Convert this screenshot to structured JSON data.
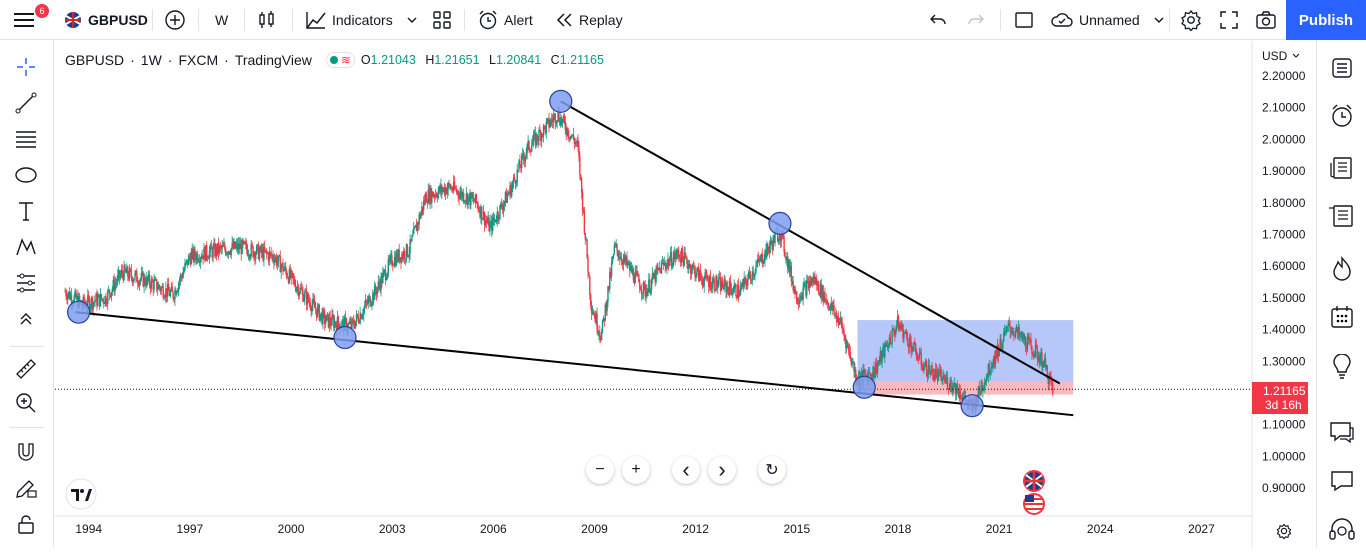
{
  "header": {
    "notification_count": "6",
    "symbol": "GBPUSD",
    "interval": "W",
    "indicators_label": "Indicators",
    "alert_label": "Alert",
    "replay_label": "Replay",
    "layout_name": "Unnamed",
    "publish_label": "Publish"
  },
  "legend": {
    "symbol": "GBPUSD",
    "interval": "1W",
    "exchange": "FXCM",
    "source": "TradingView",
    "open_label": "O",
    "open": "1.21043",
    "high_label": "H",
    "high": "1.21651",
    "low_label": "L",
    "low": "1.20841",
    "close_label": "C",
    "close": "1.21165"
  },
  "price_scale": {
    "currency": "USD",
    "ticks": [
      "2.20000",
      "2.10000",
      "2.00000",
      "1.90000",
      "1.80000",
      "1.70000",
      "1.60000",
      "1.50000",
      "1.40000",
      "1.30000",
      "1.10000",
      "1.00000",
      "0.90000"
    ],
    "last_price": "1.21165",
    "countdown": "3d 16h"
  },
  "time_scale": {
    "ticks": [
      "1994",
      "1997",
      "2000",
      "2003",
      "2006",
      "2009",
      "2012",
      "2015",
      "2018",
      "2021",
      "2024",
      "2027"
    ]
  },
  "chart_controls": {
    "zoom_out": "−",
    "zoom_in": "+",
    "scroll_left": "‹",
    "scroll_right": "›",
    "reset": "↻"
  },
  "colors": {
    "up": "#089981",
    "down": "#f23645",
    "accent": "#2962ff",
    "box_blue": "#9db5f7",
    "box_red": "#f7a8ae",
    "marker": "#7e9ef0"
  },
  "chart_data": {
    "type": "candlestick",
    "symbol": "GBPUSD",
    "interval": "1W",
    "x_range": [
      1993,
      2028.5
    ],
    "y_range": [
      0.84,
      2.24
    ],
    "last_close": 1.21165,
    "price_path": [
      [
        1993.3,
        1.52
      ],
      [
        1993.8,
        1.48
      ],
      [
        1994.5,
        1.5
      ],
      [
        1995.0,
        1.58
      ],
      [
        1995.8,
        1.55
      ],
      [
        1996.5,
        1.51
      ],
      [
        1997.0,
        1.63
      ],
      [
        1997.8,
        1.65
      ],
      [
        1998.5,
        1.66
      ],
      [
        1999.5,
        1.63
      ],
      [
        2000.3,
        1.52
      ],
      [
        2001.0,
        1.43
      ],
      [
        2001.8,
        1.41
      ],
      [
        2002.5,
        1.52
      ],
      [
        2003.0,
        1.62
      ],
      [
        2003.5,
        1.65
      ],
      [
        2004.0,
        1.82
      ],
      [
        2004.7,
        1.85
      ],
      [
        2005.5,
        1.8
      ],
      [
        2005.9,
        1.72
      ],
      [
        2006.5,
        1.84
      ],
      [
        2007.0,
        1.97
      ],
      [
        2007.9,
        2.08
      ],
      [
        2008.5,
        1.98
      ],
      [
        2008.9,
        1.48
      ],
      [
        2009.2,
        1.38
      ],
      [
        2009.6,
        1.66
      ],
      [
        2010.5,
        1.52
      ],
      [
        2011.0,
        1.6
      ],
      [
        2011.5,
        1.64
      ],
      [
        2012.2,
        1.56
      ],
      [
        2013.3,
        1.52
      ],
      [
        2014.5,
        1.71
      ],
      [
        2015.0,
        1.5
      ],
      [
        2015.5,
        1.56
      ],
      [
        2016.3,
        1.42
      ],
      [
        2016.8,
        1.24
      ],
      [
        2017.3,
        1.27
      ],
      [
        2018.0,
        1.42
      ],
      [
        2018.8,
        1.28
      ],
      [
        2019.7,
        1.22
      ],
      [
        2020.2,
        1.15
      ],
      [
        2020.8,
        1.3
      ],
      [
        2021.3,
        1.41
      ],
      [
        2021.9,
        1.35
      ],
      [
        2022.3,
        1.3
      ],
      [
        2022.6,
        1.21
      ]
    ],
    "trendlines": [
      {
        "from": [
          2008.0,
          2.12
        ],
        "to": [
          2022.8,
          1.23
        ]
      },
      {
        "from": [
          1993.6,
          1.455
        ],
        "to": [
          2023.2,
          1.13
        ]
      }
    ],
    "rectangles": [
      {
        "x": [
          2016.8,
          2023.2
        ],
        "y": [
          1.235,
          1.43
        ],
        "color": "blue"
      },
      {
        "x": [
          2016.8,
          2023.2
        ],
        "y": [
          1.195,
          1.235
        ],
        "color": "red"
      }
    ],
    "circle_markers": [
      [
        1993.7,
        1.455
      ],
      [
        2001.6,
        1.375
      ],
      [
        2008.0,
        2.12
      ],
      [
        2014.5,
        1.735
      ],
      [
        2017.0,
        1.218
      ],
      [
        2020.2,
        1.16
      ]
    ]
  }
}
